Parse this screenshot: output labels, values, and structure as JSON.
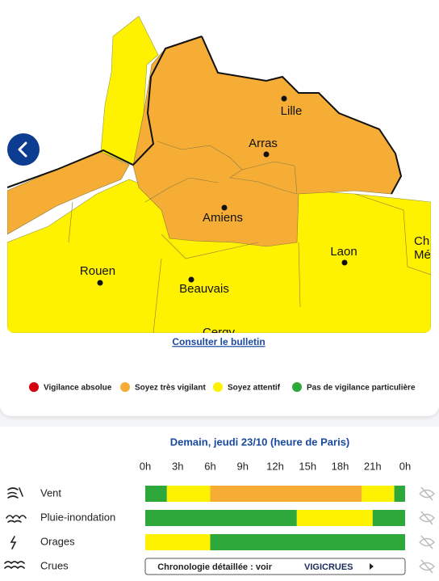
{
  "map": {
    "cities": [
      "Lille",
      "Arras",
      "Amiens",
      "Rouen",
      "Beauvais",
      "Laon",
      "Cergy",
      "Ch",
      "Mé"
    ]
  },
  "link": "Consulter le bulletin",
  "legend": [
    {
      "label": "Vigilance absolue",
      "color": "#d4000f"
    },
    {
      "label": "Soyez très vigilant",
      "color": "#f6ad36"
    },
    {
      "label": "Soyez attentif",
      "color": "#fff200"
    },
    {
      "label": "Pas de vigilance particulière",
      "color": "#2ea83a"
    }
  ],
  "timeline": {
    "title": "Demain, jeudi 23/10 (heure de Paris)",
    "hours": [
      "0h",
      "3h",
      "6h",
      "9h",
      "12h",
      "15h",
      "18h",
      "21h",
      "0h"
    ],
    "hlim": [
      0,
      24
    ],
    "rows": [
      {
        "name": "Vent",
        "segments": [
          {
            "start": 0,
            "end": 2,
            "color": "#2ea83a"
          },
          {
            "start": 2,
            "end": 6,
            "color": "#fff200"
          },
          {
            "start": 6,
            "end": 20,
            "color": "#f6ad36"
          },
          {
            "start": 20,
            "end": 23,
            "color": "#fff200"
          },
          {
            "start": 23,
            "end": 24,
            "color": "#2ea83a"
          }
        ]
      },
      {
        "name": "Pluie-inondation",
        "segments": [
          {
            "start": 0,
            "end": 14,
            "color": "#2ea83a"
          },
          {
            "start": 14,
            "end": 21,
            "color": "#fff200"
          },
          {
            "start": 21,
            "end": 24,
            "color": "#2ea83a"
          }
        ]
      },
      {
        "name": "Orages",
        "segments": [
          {
            "start": 0,
            "end": 6,
            "color": "#fff200"
          },
          {
            "start": 6,
            "end": 24,
            "color": "#2ea83a"
          }
        ]
      },
      {
        "name": "Crues",
        "note": "Chronologie détaillée : voir",
        "brand": "VIGICRUES"
      }
    ]
  }
}
